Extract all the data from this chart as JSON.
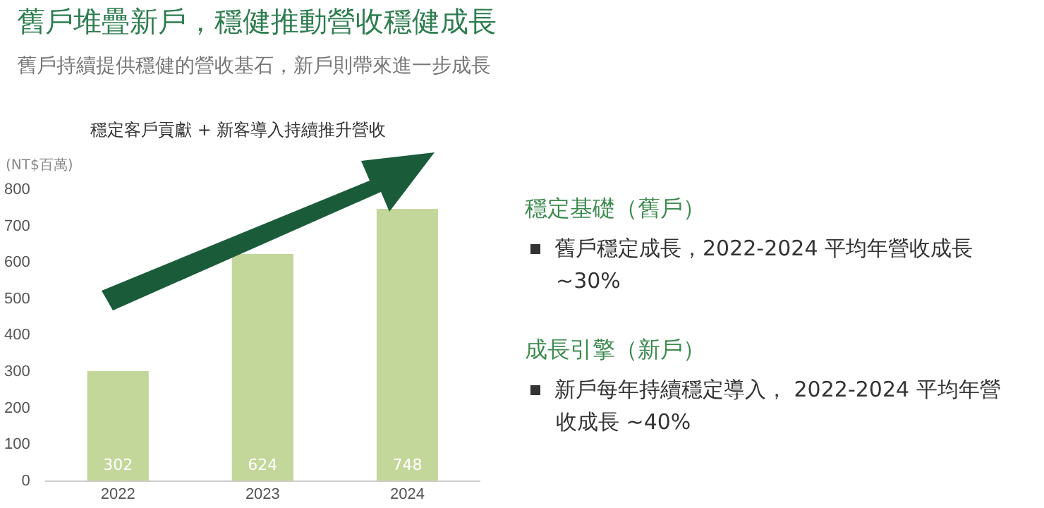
{
  "chart_data": {
    "type": "bar",
    "title": "舊戶堆疊新戶，穩健推動營收穩健成長",
    "subtitle": "舊戶持續提供穩健的營收基石，新戶則帶來進一步成長",
    "ylabel": "(NT$百萬)",
    "categories": [
      "2022",
      "2023",
      "2024"
    ],
    "values": [
      302,
      624,
      748
    ],
    "color": "#c4d79b",
    "ylim": [
      0,
      800
    ],
    "yticks": [
      0,
      100,
      200,
      300,
      400,
      500,
      600,
      700,
      800
    ],
    "grid": false,
    "data_labels": true,
    "annotations": [
      "穩定客戶貢獻 + 新客導入持續推升營收",
      "穩定基礎（舊戶）",
      "舊戶穩定成長，2022-2024 平均年營收成長 ~30%",
      "成長引擎（新戶）",
      "新戶每年持續穩定導入， 2022-2024 平均年營收成長 ~40%"
    ]
  }
}
